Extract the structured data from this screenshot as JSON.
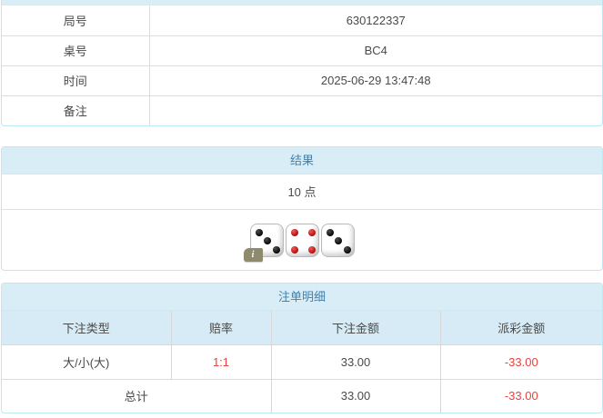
{
  "info_panel": {
    "rows": [
      {
        "label": "局号",
        "value": "630122337"
      },
      {
        "label": "桌号",
        "value": "BC4"
      },
      {
        "label": "时间",
        "value": "2025-06-29 13:47:48"
      },
      {
        "label": "备注",
        "value": ""
      }
    ]
  },
  "result_panel": {
    "title": "结果",
    "points": "10 点",
    "dice": [
      {
        "value": 3,
        "color": "black"
      },
      {
        "value": 4,
        "color": "red"
      },
      {
        "value": 3,
        "color": "black"
      }
    ],
    "info_icon": "i"
  },
  "bet_panel": {
    "title": "注单明细",
    "columns": [
      "下注类型",
      "赔率",
      "下注金额",
      "派彩金额"
    ],
    "rows": [
      {
        "type": "大/小(大)",
        "odds": "1:1",
        "amount": "33.00",
        "payout": "-33.00"
      }
    ],
    "total": {
      "label": "总计",
      "amount": "33.00",
      "payout": "-33.00"
    }
  },
  "colors": {
    "panel_border": "#bce8f1",
    "panel_heading_bg": "#d9edf7",
    "heading_text": "#4180ae",
    "table_header_bg": "#d6ebf5",
    "negative_red": "#e8423e",
    "cell_border": "#dddddd"
  }
}
